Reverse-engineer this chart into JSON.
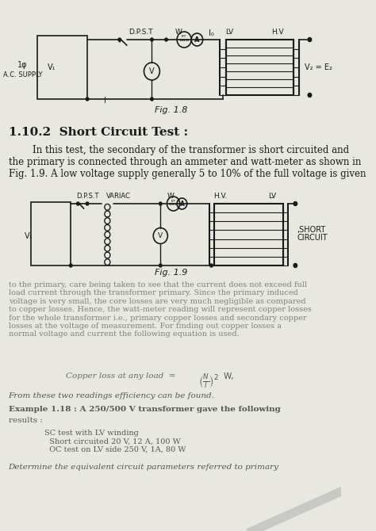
{
  "bg_color": "#e8e8e0",
  "title_text": "1.10.2  Short Circuit Test :",
  "body_text1": "        In this test, the secondary of the transformer is short circuited and\nthe primary is connected through an ammeter and watt-meter as shown in\nFig. 1.9. A low voltage supply generally 5 to 10% of the full voltage is given",
  "body_text2": "to the primary, care being taken to see that the current does not exceed full\nload current through the transformer primary. Since the primary induced\nvoltage is very small, the core losses are very much negligible as compared\nto copper losses. Hence, the watt-meter reading will represent copper losses\nfor the whole transformer i.e., primary copper losses and secondary copper\nlosses at the voltage of measurement. For finding out copper losses a\nnormal voltage and current the following equation is used.",
  "formula_text": "Copper loss at any load  =",
  "formula2_text": "From these two readings efficiency can be found.",
  "example_text": "Example 1.18 : A 250/500 V transformer gave the following",
  "results_text": "results :",
  "sc_test_text": "SC test with LV winding\n  Short circuited 20 V, 12 A, 100 W\n  OC test on LV side 250 V, 1A, 80 W",
  "determine_text": "Determine the equivalent circuit parameters referred to primary",
  "fig18_caption": "Fig. 1.8",
  "fig19_caption": "Fig. 1.9",
  "line_color": "#1a1a1a",
  "text_color": "#1a1a1a"
}
